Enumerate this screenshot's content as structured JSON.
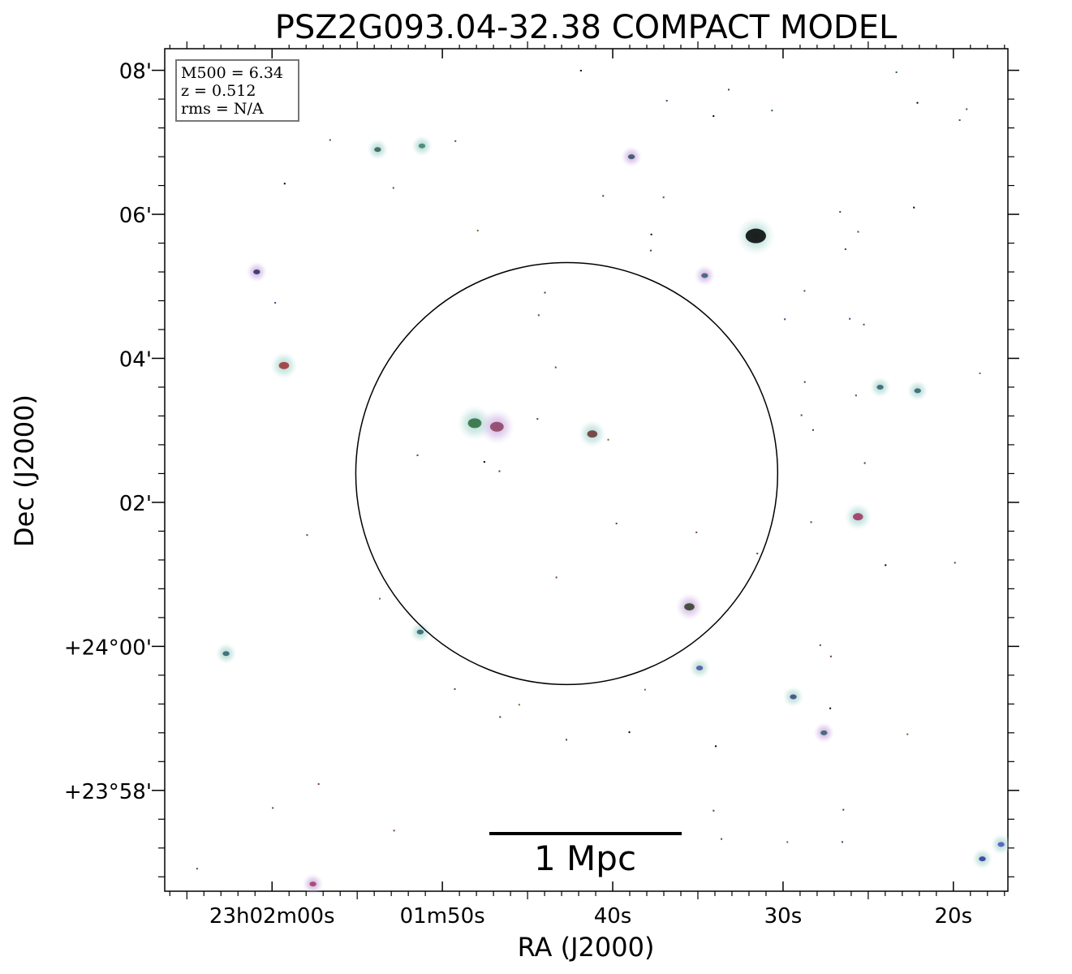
{
  "chart_data": {
    "type": "scatter",
    "title": "PSZ2G093.04-32.38 COMPACT MODEL",
    "xlabel": "RA (J2000)",
    "ylabel": "Dec (J2000)",
    "xlim_sec": [
      66.3,
      16.8
    ],
    "ylim_min": [
      -3.4,
      8.3
    ],
    "x_ticks": [
      {
        "value": 60,
        "label": "23h02m00s"
      },
      {
        "value": 50,
        "label": "01m50s"
      },
      {
        "value": 40,
        "label": "40s"
      },
      {
        "value": 30,
        "label": "30s"
      },
      {
        "value": 20,
        "label": "20s"
      }
    ],
    "y_ticks": [
      {
        "value": 8,
        "label": "08'"
      },
      {
        "value": 6,
        "label": "06'"
      },
      {
        "value": 4,
        "label": "04'"
      },
      {
        "value": 2,
        "label": "02'"
      },
      {
        "value": 0,
        "label": "+24°00'"
      },
      {
        "value": -2,
        "label": "+23°58'"
      }
    ],
    "info_box": [
      "M500 = 6.34",
      "z = 0.512",
      "rms = N/A"
    ],
    "scale_bar_label": "1 Mpc",
    "circle": {
      "ra": 42.7,
      "dec": 2.4,
      "radius_arcmin": 2.93
    },
    "sources": [
      {
        "ra": 48.1,
        "dec": 3.1,
        "size": "large",
        "color": "#2a6b3a"
      },
      {
        "ra": 46.8,
        "dec": 3.05,
        "size": "large",
        "color": "#8a4060"
      },
      {
        "ra": 41.2,
        "dec": 2.95,
        "size": "medium",
        "color": "#6b3030"
      },
      {
        "ra": 31.6,
        "dec": 5.7,
        "size": "xlarge",
        "color": "#000000"
      },
      {
        "ra": 35.5,
        "dec": 0.55,
        "size": "medium",
        "color": "#2a4020"
      },
      {
        "ra": 25.6,
        "dec": 1.8,
        "size": "medium",
        "color": "#a03060"
      },
      {
        "ra": 59.3,
        "dec": 3.9,
        "size": "medium",
        "color": "#a03030"
      },
      {
        "ra": 60.9,
        "dec": 5.2,
        "size": "small",
        "color": "#203060"
      },
      {
        "ra": 51.2,
        "dec": 6.95,
        "size": "small",
        "color": "#408070"
      },
      {
        "ra": 53.8,
        "dec": 6.9,
        "size": "small",
        "color": "#306050"
      },
      {
        "ra": 38.9,
        "dec": 6.8,
        "size": "small",
        "color": "#305060"
      },
      {
        "ra": 34.9,
        "dec": -0.3,
        "size": "small",
        "color": "#5050a0"
      },
      {
        "ra": 29.4,
        "dec": -0.7,
        "size": "small",
        "color": "#404080"
      },
      {
        "ra": 27.6,
        "dec": -1.2,
        "size": "small",
        "color": "#306070"
      },
      {
        "ra": 24.3,
        "dec": 3.6,
        "size": "small",
        "color": "#306070"
      },
      {
        "ra": 22.1,
        "dec": 3.55,
        "size": "small",
        "color": "#306070"
      },
      {
        "ra": 34.6,
        "dec": 5.15,
        "size": "small",
        "color": "#306070"
      },
      {
        "ra": 62.7,
        "dec": -0.1,
        "size": "small",
        "color": "#306070"
      },
      {
        "ra": 51.3,
        "dec": 0.2,
        "size": "small",
        "color": "#306070"
      },
      {
        "ra": 57.6,
        "dec": -3.3,
        "size": "small",
        "color": "#a04060"
      },
      {
        "ra": 18.3,
        "dec": -2.95,
        "size": "small",
        "color": "#3030a0"
      },
      {
        "ra": 17.2,
        "dec": -2.75,
        "size": "small",
        "color": "#5050c0"
      }
    ]
  }
}
